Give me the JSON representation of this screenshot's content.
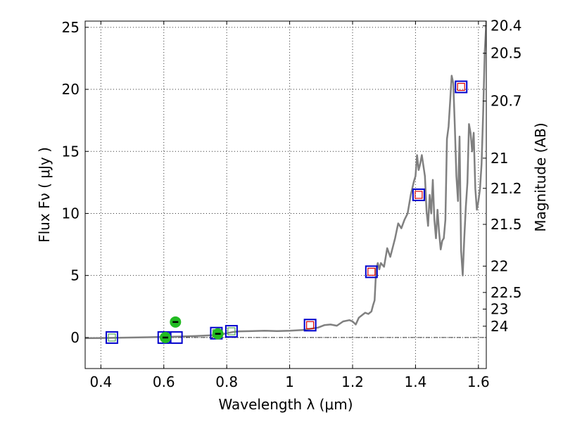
{
  "chart_data": {
    "type": "scatter",
    "title": "",
    "xlabel": "Wavelength  λ (μm)",
    "ylabel": "Flux  Fν  ( μJy )",
    "y2label": "Magnitude (AB)",
    "xlim": [
      0.35,
      1.625
    ],
    "ylim": [
      -2.5,
      25.5
    ],
    "grid": true,
    "legend": "none",
    "x_ticks": [
      {
        "value": 0.4,
        "label": "0.4"
      },
      {
        "value": 0.6,
        "label": "0.6"
      },
      {
        "value": 0.8,
        "label": "0.8"
      },
      {
        "value": 1.0,
        "label": "1"
      },
      {
        "value": 1.2,
        "label": "1.2"
      },
      {
        "value": 1.4,
        "label": "1.4"
      },
      {
        "value": 1.6,
        "label": "1.6"
      }
    ],
    "y_ticks": [
      {
        "value": 0,
        "label": "0"
      },
      {
        "value": 5,
        "label": "5"
      },
      {
        "value": 10,
        "label": "10"
      },
      {
        "value": 15,
        "label": "15"
      },
      {
        "value": 20,
        "label": "20"
      },
      {
        "value": 25,
        "label": "25"
      }
    ],
    "y2_ticks": [
      {
        "mag": 20.4,
        "label": "20.4"
      },
      {
        "mag": 20.5,
        "label": "20.5"
      },
      {
        "mag": 20.7,
        "label": "20.7"
      },
      {
        "mag": 21.0,
        "label": "21"
      },
      {
        "mag": 21.2,
        "label": "21.2"
      },
      {
        "mag": 21.5,
        "label": "21.5"
      },
      {
        "mag": 22.0,
        "label": "22"
      },
      {
        "mag": 22.5,
        "label": "22.5"
      },
      {
        "mag": 23.0,
        "label": "23"
      },
      {
        "mag": 24.0,
        "label": "24"
      }
    ],
    "colors": {
      "model": "#808080",
      "observed_edge": "#0000cc",
      "model_phot_edge": "#dd0000",
      "green_box_edge": "#55aa55",
      "green_dot": "#22bb22",
      "zero_line": "#000000"
    },
    "series": [
      {
        "kind": "model-spectrum",
        "points": [
          [
            0.35,
            -0.05
          ],
          [
            0.4,
            -0.04
          ],
          [
            0.45,
            -0.02
          ],
          [
            0.5,
            0.0
          ],
          [
            0.55,
            0.02
          ],
          [
            0.6,
            0.05
          ],
          [
            0.65,
            0.08
          ],
          [
            0.7,
            0.12
          ],
          [
            0.75,
            0.18
          ],
          [
            0.78,
            0.22
          ],
          [
            0.8,
            0.35
          ],
          [
            0.82,
            0.45
          ],
          [
            0.84,
            0.5
          ],
          [
            0.88,
            0.52
          ],
          [
            0.92,
            0.55
          ],
          [
            0.96,
            0.52
          ],
          [
            1.0,
            0.55
          ],
          [
            1.04,
            0.6
          ],
          [
            1.07,
            0.72
          ],
          [
            1.09,
            0.8
          ],
          [
            1.11,
            1.0
          ],
          [
            1.13,
            1.05
          ],
          [
            1.15,
            0.95
          ],
          [
            1.17,
            1.3
          ],
          [
            1.19,
            1.4
          ],
          [
            1.2,
            1.3
          ],
          [
            1.21,
            1.05
          ],
          [
            1.22,
            1.6
          ],
          [
            1.23,
            1.8
          ],
          [
            1.24,
            2.0
          ],
          [
            1.25,
            1.9
          ],
          [
            1.26,
            2.1
          ],
          [
            1.265,
            2.6
          ],
          [
            1.27,
            3.0
          ],
          [
            1.275,
            5.5
          ],
          [
            1.28,
            6.0
          ],
          [
            1.285,
            5.5
          ],
          [
            1.29,
            6.0
          ],
          [
            1.3,
            5.7
          ],
          [
            1.31,
            7.2
          ],
          [
            1.32,
            6.5
          ],
          [
            1.335,
            8.0
          ],
          [
            1.345,
            9.2
          ],
          [
            1.355,
            8.8
          ],
          [
            1.365,
            9.5
          ],
          [
            1.375,
            10.0
          ],
          [
            1.385,
            11.5
          ],
          [
            1.395,
            12.6
          ],
          [
            1.4,
            13.0
          ],
          [
            1.405,
            14.7
          ],
          [
            1.41,
            13.5
          ],
          [
            1.415,
            14.0
          ],
          [
            1.42,
            14.7
          ],
          [
            1.43,
            13.0
          ],
          [
            1.435,
            10.2
          ],
          [
            1.44,
            9.0
          ],
          [
            1.445,
            11.5
          ],
          [
            1.45,
            10.0
          ],
          [
            1.455,
            12.7
          ],
          [
            1.46,
            9.5
          ],
          [
            1.465,
            8.0
          ],
          [
            1.47,
            10.3
          ],
          [
            1.475,
            8.5
          ],
          [
            1.48,
            7.1
          ],
          [
            1.485,
            7.8
          ],
          [
            1.49,
            8.0
          ],
          [
            1.495,
            9.5
          ],
          [
            1.5,
            16.0
          ],
          [
            1.505,
            17.0
          ],
          [
            1.51,
            19.0
          ],
          [
            1.515,
            21.1
          ],
          [
            1.52,
            20.5
          ],
          [
            1.525,
            17.0
          ],
          [
            1.53,
            13.0
          ],
          [
            1.535,
            11.0
          ],
          [
            1.54,
            16.2
          ],
          [
            1.545,
            7.0
          ],
          [
            1.55,
            5.0
          ],
          [
            1.555,
            8.0
          ],
          [
            1.56,
            10.5
          ],
          [
            1.565,
            12.5
          ],
          [
            1.57,
            17.2
          ],
          [
            1.575,
            16.5
          ],
          [
            1.58,
            15.0
          ],
          [
            1.585,
            16.5
          ],
          [
            1.59,
            12.0
          ],
          [
            1.595,
            10.3
          ],
          [
            1.6,
            11.0
          ],
          [
            1.605,
            12.0
          ],
          [
            1.61,
            14.0
          ],
          [
            1.615,
            18.0
          ],
          [
            1.62,
            23.0
          ],
          [
            1.625,
            25.5
          ]
        ]
      },
      {
        "kind": "observed-photometry",
        "points": [
          {
            "x": 0.435,
            "y": 0.0,
            "edge": "blue",
            "inner": "green"
          },
          {
            "x": 0.6,
            "y": 0.0,
            "edge": "blue",
            "inner": "none"
          },
          {
            "x": 0.64,
            "y": 0.0,
            "edge": "blue",
            "inner": "none"
          },
          {
            "x": 0.767,
            "y": 0.35,
            "edge": "blue",
            "inner": "green"
          },
          {
            "x": 0.815,
            "y": 0.5,
            "edge": "blue",
            "inner": "green"
          },
          {
            "x": 1.065,
            "y": 1.0,
            "edge": "blue",
            "inner": "red"
          },
          {
            "x": 1.26,
            "y": 5.3,
            "edge": "blue",
            "inner": "red"
          },
          {
            "x": 1.41,
            "y": 11.5,
            "edge": "blue",
            "inner": "red"
          },
          {
            "x": 1.545,
            "y": 20.2,
            "edge": "blue",
            "inner": "red"
          }
        ]
      },
      {
        "kind": "detections",
        "points": [
          {
            "x": 0.605,
            "y": 0.0
          },
          {
            "x": 0.637,
            "y": 1.25
          },
          {
            "x": 0.772,
            "y": 0.3
          }
        ]
      }
    ]
  }
}
